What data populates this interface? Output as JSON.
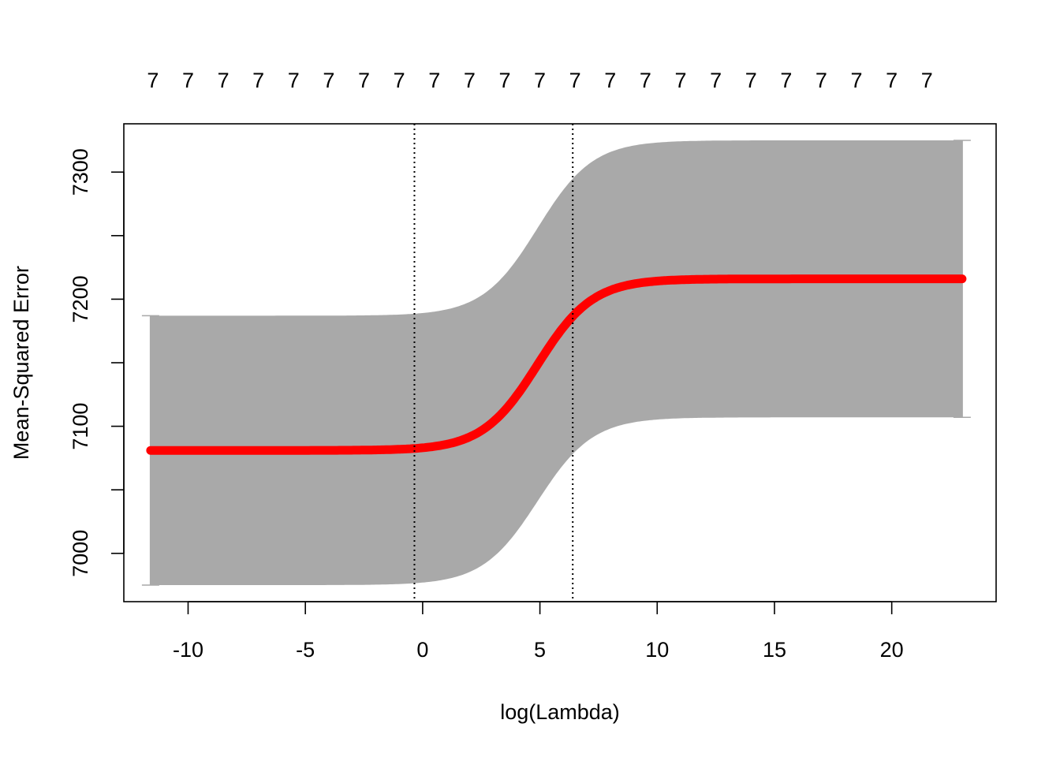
{
  "chart_data": {
    "type": "line",
    "title": "",
    "xlabel": "log(Lambda)",
    "ylabel": "Mean-Squared Error",
    "xlim": [
      -12.74,
      24.45
    ],
    "ylim": [
      6962,
      7338
    ],
    "x_ticks": [
      -10,
      -5,
      0,
      5,
      10,
      15,
      20
    ],
    "y_ticks": [
      7000,
      7050,
      7100,
      7150,
      7200,
      7250,
      7300
    ],
    "y_tick_labels": [
      "7000",
      "",
      "7100",
      "",
      "7200",
      "",
      "7300"
    ],
    "top_axis_label": "7",
    "top_axis_count": 23,
    "top_ticks_x": [
      -11.5,
      -10,
      -8.5,
      -7,
      -5.5,
      -4,
      -2.5,
      -1,
      0.5,
      2,
      3.5,
      5,
      6.5,
      8,
      9.5,
      11,
      12.5,
      14,
      15.5,
      17,
      18.5,
      20,
      21.5
    ],
    "vlines": {
      "lambda_min": -0.35,
      "lambda_1se": 6.4
    },
    "cv_curve": {
      "x_start": -11.6,
      "x_end": 23.0,
      "low_mse": 7081,
      "high_mse": 7216,
      "sd_low": 106,
      "sd_high": 109,
      "midpoint": 4.9,
      "steepness": 0.85
    },
    "grid": false,
    "colors": {
      "mean": "#ff0000",
      "band": "#a9a9a9",
      "frame": "#000000"
    }
  }
}
